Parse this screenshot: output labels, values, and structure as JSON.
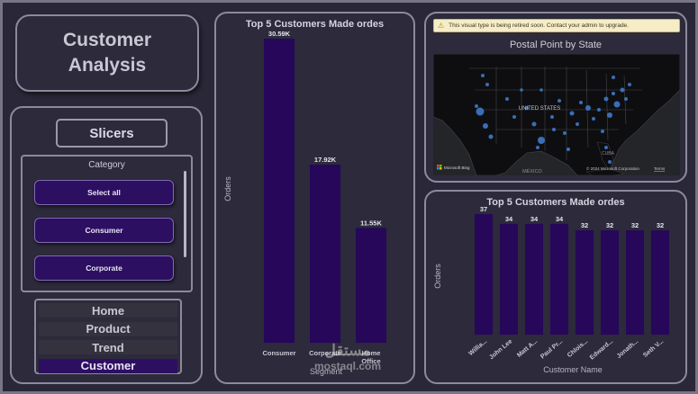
{
  "report": {
    "title_line1": "Customer",
    "title_line2": "Analysis"
  },
  "slicers": {
    "heading": "Slicers",
    "category_label": "Category",
    "items": [
      "Select all",
      "Consumer",
      "Corporate"
    ]
  },
  "navigation": {
    "items": [
      {
        "label": "Home",
        "active": false
      },
      {
        "label": "Product",
        "active": false
      },
      {
        "label": "Trend",
        "active": false
      },
      {
        "label": "Customer",
        "active": true
      }
    ]
  },
  "map": {
    "warning": "This visual type is being retired soon. Contact your admin to upgrade.",
    "title": "Postal Point by State",
    "label_country": "UNITED STATES",
    "label_mexico": "MÉXICO",
    "label_cuba": "CUBA",
    "label_bing": "Microsoft Bing",
    "label_copyright": "© 2024 Microsoft Corporation",
    "label_terms": "Terms"
  },
  "colors": {
    "bar": "#26075a",
    "label": "#e6e4ee",
    "dot": "#3f79c9"
  },
  "chart_data": [
    {
      "type": "bar",
      "title": "Top 5 Customers Made ordes",
      "xlabel": "Segment",
      "ylabel": "Orders",
      "categories": [
        "Consumer",
        "Corporate",
        "Home Office"
      ],
      "values": [
        30590,
        17920,
        11550
      ],
      "data_labels": [
        "30.59K",
        "17.92K",
        "11.55K"
      ],
      "ylim": [
        0,
        30590
      ],
      "grid": false
    },
    {
      "type": "bar",
      "title": "Top 5 Customers Made ordes",
      "xlabel": "Customer Name",
      "ylabel": "Orders",
      "categories": [
        "Willia...",
        "John Lee",
        "Matt A...",
        "Paul Pr...",
        "Chlois...",
        "Edward...",
        "Jonath...",
        "Seth V..."
      ],
      "values": [
        37,
        34,
        34,
        34,
        32,
        32,
        32,
        32
      ],
      "data_labels": [
        "37",
        "34",
        "34",
        "34",
        "32",
        "32",
        "32",
        "32"
      ],
      "ylim": [
        0,
        37
      ],
      "grid": false
    }
  ]
}
